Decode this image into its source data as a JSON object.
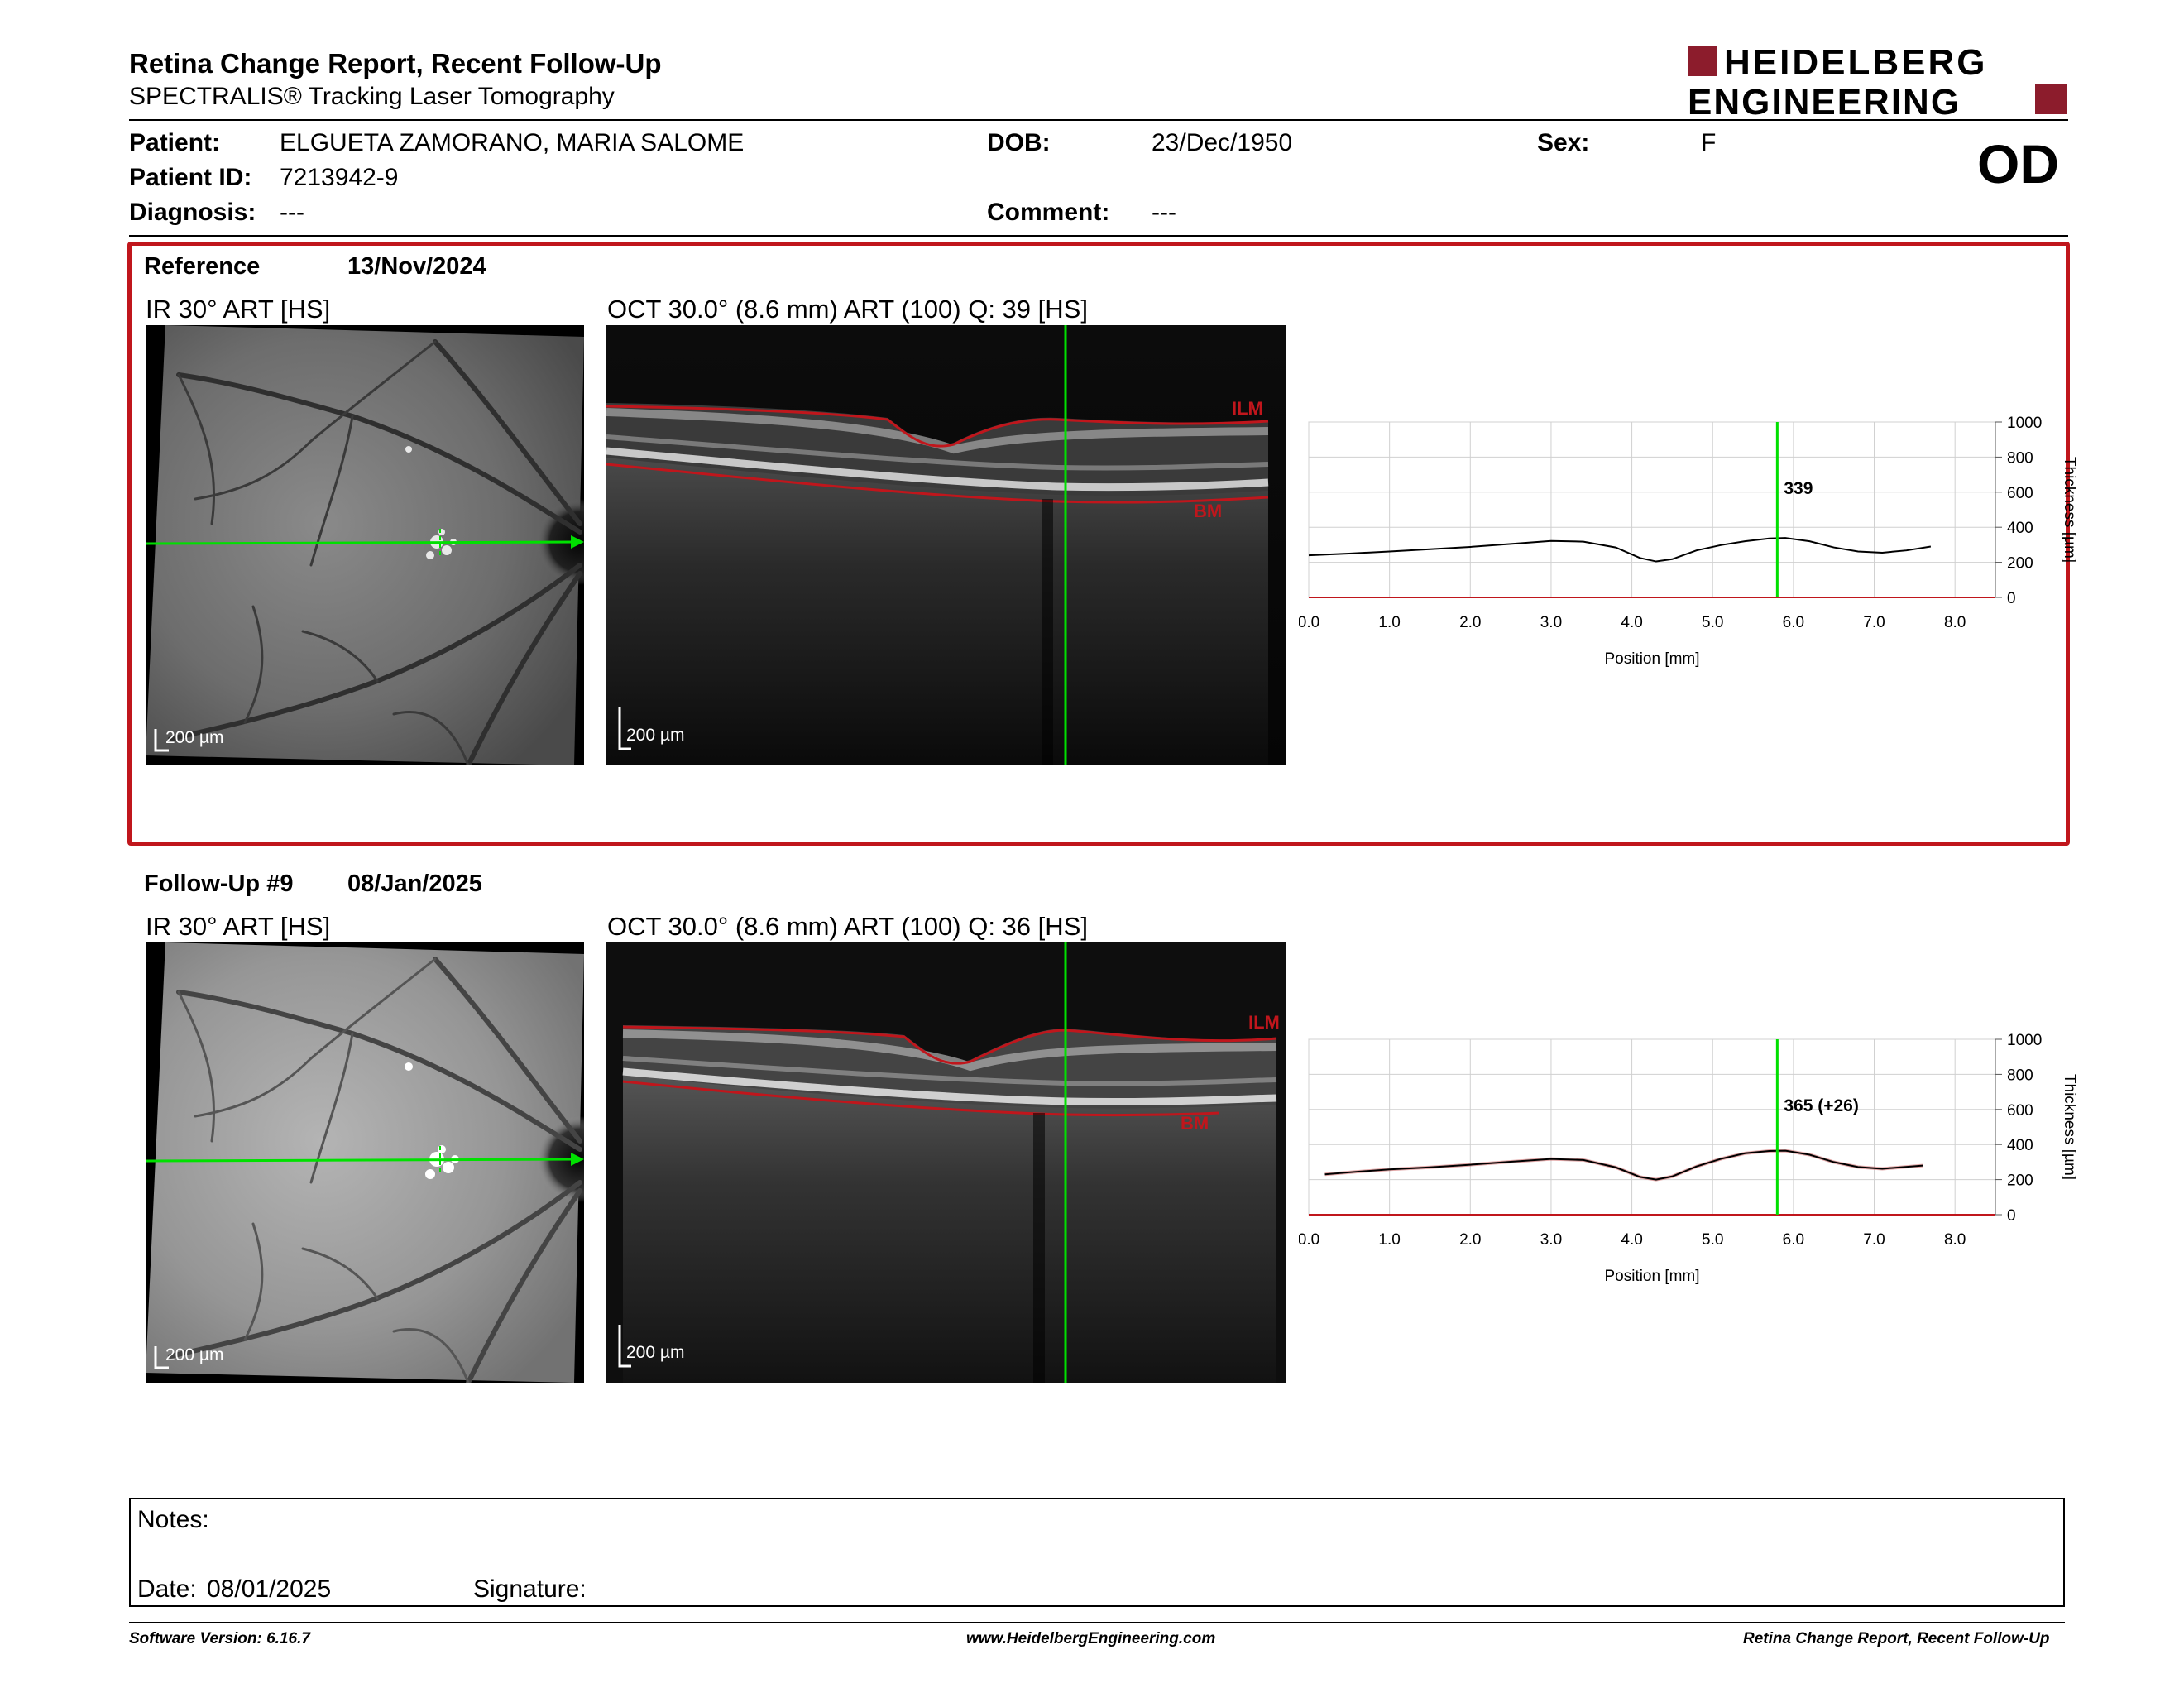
{
  "header": {
    "title": "Retina Change Report, Recent Follow-Up",
    "subtitle": "SPECTRALIS® Tracking Laser Tomography",
    "logo_line1": "HEIDELBERG",
    "logo_line2": "ENGINEERING",
    "eye": "OD"
  },
  "patient": {
    "patient_label": "Patient:",
    "patient_name": "ELGUETA ZAMORANO, MARIA SALOME",
    "dob_label": "DOB:",
    "dob": "23/Dec/1950",
    "sex_label": "Sex:",
    "sex": "F",
    "id_label": "Patient ID:",
    "id": "7213942-9",
    "diagnosis_label": "Diagnosis:",
    "diagnosis": "---",
    "comment_label": "Comment:",
    "comment": "---"
  },
  "reference": {
    "label": "Reference",
    "date": "13/Nov/2024",
    "ir_caption": "IR 30° ART [HS]",
    "oct_caption": "OCT 30.0° (8.6 mm) ART (100) Q: 39 [HS]",
    "ir_scale": "200 µm",
    "oct_scale": "200 µm",
    "ilm_label": "ILM",
    "bm_label": "BM"
  },
  "followup": {
    "label": "Follow-Up #9",
    "date": "08/Jan/2025",
    "ir_caption": "IR 30° ART [HS]",
    "oct_caption": "OCT 30.0° (8.6 mm) ART (100) Q: 36 [HS]",
    "ir_scale": "200 µm",
    "oct_scale": "200 µm",
    "ilm_label": "ILM",
    "bm_label": "BM"
  },
  "chart_data": [
    {
      "type": "line",
      "title": "",
      "xlabel": "Position [mm]",
      "ylabel": "Thickness [µm]",
      "xlim": [
        0,
        8.5
      ],
      "ylim": [
        0,
        1000
      ],
      "xticks": [
        "0.0",
        "1.0",
        "2.0",
        "3.0",
        "4.0",
        "5.0",
        "6.0",
        "7.0",
        "8.0"
      ],
      "yticks": [
        "0",
        "200",
        "400",
        "600",
        "800",
        "1000"
      ],
      "grid": true,
      "cursor_x": 5.8,
      "cursor_label": "339",
      "series": [
        {
          "x": [
            0.0,
            0.5,
            1.0,
            1.5,
            2.0,
            2.5,
            3.0,
            3.4,
            3.8,
            4.1,
            4.3,
            4.5,
            4.8,
            5.1,
            5.4,
            5.7,
            5.9,
            6.2,
            6.5,
            6.8,
            7.1,
            7.4,
            7.7
          ],
          "values": [
            240,
            250,
            262,
            275,
            288,
            305,
            322,
            318,
            285,
            225,
            205,
            218,
            268,
            298,
            320,
            336,
            339,
            320,
            285,
            262,
            255,
            268,
            290
          ]
        }
      ]
    },
    {
      "type": "line",
      "title": "",
      "xlabel": "Position [mm]",
      "ylabel": "Thickness [µm]",
      "xlim": [
        0,
        8.5
      ],
      "ylim": [
        0,
        1000
      ],
      "xticks": [
        "0.0",
        "1.0",
        "2.0",
        "3.0",
        "4.0",
        "5.0",
        "6.0",
        "7.0",
        "8.0"
      ],
      "yticks": [
        "0",
        "200",
        "400",
        "600",
        "800",
        "1000"
      ],
      "grid": true,
      "cursor_x": 5.8,
      "cursor_label": "365 (+26)",
      "series": [
        {
          "x": [
            0.2,
            0.6,
            1.0,
            1.5,
            2.0,
            2.5,
            3.0,
            3.4,
            3.8,
            4.1,
            4.3,
            4.5,
            4.8,
            5.1,
            5.4,
            5.7,
            5.9,
            6.2,
            6.5,
            6.8,
            7.1,
            7.6
          ],
          "values": [
            230,
            245,
            258,
            270,
            285,
            302,
            318,
            312,
            270,
            215,
            200,
            218,
            275,
            318,
            350,
            363,
            365,
            342,
            300,
            272,
            262,
            280
          ]
        }
      ]
    }
  ],
  "notes": {
    "notes_label": "Notes:",
    "date_label": "Date:",
    "date_value": "08/01/2025",
    "signature_label": "Signature:"
  },
  "footer": {
    "software": "Software Version: 6.16.7",
    "url": "www.HeidelbergEngineering.com",
    "report": "Retina Change Report, Recent Follow-Up"
  },
  "colors": {
    "brand": "#8c1c2c",
    "reference_border": "#c0161c",
    "cursor": "#00e000",
    "ilm_bm": "#c0161c"
  }
}
